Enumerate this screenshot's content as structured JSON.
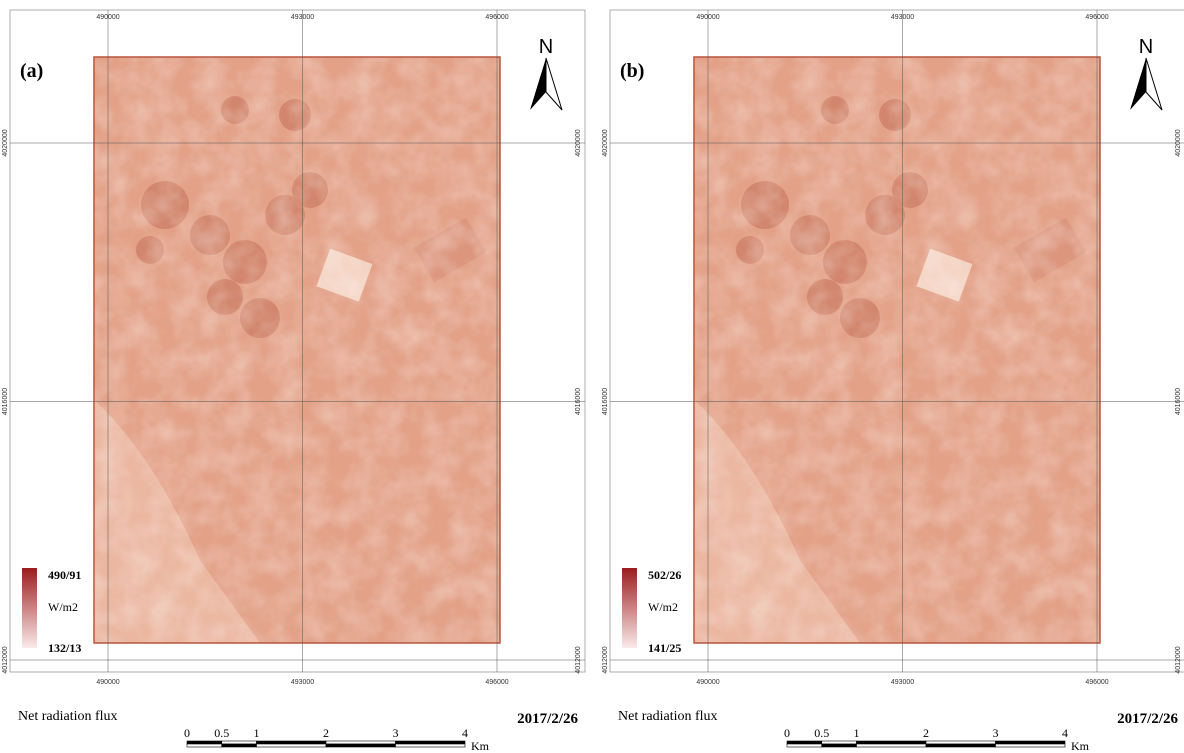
{
  "north": "N",
  "x_coords": [
    490000,
    493000,
    496000
  ],
  "y_coords": [
    4020000,
    4016000,
    4012000
  ],
  "scale_bar": {
    "ticks": [
      0,
      0.5,
      1,
      2,
      3,
      4
    ],
    "unit": "Km"
  },
  "panels": [
    {
      "label": "(a)",
      "legend_max": "490/91",
      "legend_unit": "W/m2",
      "legend_min": "132/13",
      "caption": "Net radiation flux",
      "date": "2017/2/26"
    },
    {
      "label": "(b)",
      "legend_max": "502/26",
      "legend_unit": "W/m2",
      "legend_min": "141/25",
      "caption": "Net radiation flux",
      "date": "2017/2/26"
    }
  ]
}
